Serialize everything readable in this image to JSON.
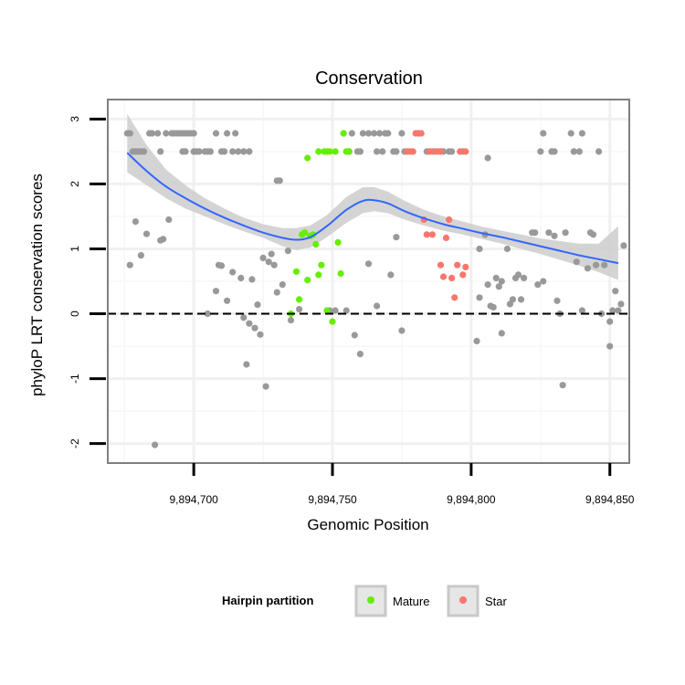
{
  "chart_data": {
    "type": "scatter",
    "title": "Conservation",
    "xlabel": "Genomic Position",
    "ylabel": "phyloP LRT conservation scores",
    "xlim": [
      9894669,
      9894857
    ],
    "ylim": [
      -2.3,
      3.3
    ],
    "x_ticks": [
      {
        "value": 9894700,
        "label": "9,894,700"
      },
      {
        "value": 9894750,
        "label": "9,894,750"
      },
      {
        "value": 9894800,
        "label": "9,894,800"
      },
      {
        "value": 9894850,
        "label": "9,894,850"
      }
    ],
    "y_ticks": [
      {
        "value": -2,
        "label": "-2"
      },
      {
        "value": -1,
        "label": "-1"
      },
      {
        "value": 0,
        "label": "0"
      },
      {
        "value": 1,
        "label": "1"
      },
      {
        "value": 2,
        "label": "2"
      },
      {
        "value": 3,
        "label": "3"
      }
    ],
    "reference_line": {
      "y": 0,
      "style": "dashed"
    },
    "colors": {
      "none": "#999999",
      "Mature": "#66ee00",
      "Star": "#f8766d",
      "smooth": "#3366ff",
      "band": "#cccccc",
      "frame": "#7f7f7f"
    },
    "legend": {
      "title": "Hairpin partition",
      "position": "bottom",
      "entries": [
        {
          "label": "Mature",
          "color": "#66ee00"
        },
        {
          "label": "Star",
          "color": "#f8766d"
        }
      ]
    },
    "series": [
      {
        "name": "none",
        "points": [
          [
            9894676,
            2.78
          ],
          [
            9894677,
            2.78
          ],
          [
            9894678,
            2.5
          ],
          [
            9894679,
            2.5
          ],
          [
            9894680,
            2.5
          ],
          [
            9894681,
            2.5
          ],
          [
            9894682,
            2.5
          ],
          [
            9894684,
            2.78
          ],
          [
            9894685,
            2.78
          ],
          [
            9894687,
            2.78
          ],
          [
            9894688,
            2.5
          ],
          [
            9894690,
            2.78
          ],
          [
            9894692,
            2.78
          ],
          [
            9894693,
            2.78
          ],
          [
            9894694,
            2.78
          ],
          [
            9894695,
            2.78
          ],
          [
            9894696,
            2.78
          ],
          [
            9894697,
            2.78
          ],
          [
            9894698,
            2.78
          ],
          [
            9894699,
            2.78
          ],
          [
            9894700,
            2.78
          ],
          [
            9894696,
            2.5
          ],
          [
            9894697,
            2.5
          ],
          [
            9894700,
            2.5
          ],
          [
            9894701,
            2.5
          ],
          [
            9894702,
            2.5
          ],
          [
            9894704,
            2.5
          ],
          [
            9894705,
            2.5
          ],
          [
            9894706,
            2.5
          ],
          [
            9894708,
            2.78
          ],
          [
            9894710,
            2.5
          ],
          [
            9894711,
            2.5
          ],
          [
            9894712,
            2.78
          ],
          [
            9894715,
            2.78
          ],
          [
            9894714,
            2.5
          ],
          [
            9894716,
            2.5
          ],
          [
            9894718,
            2.5
          ],
          [
            9894720,
            2.5
          ],
          [
            9894677,
            0.75
          ],
          [
            9894679,
            1.42
          ],
          [
            9894681,
            0.9
          ],
          [
            9894683,
            1.23
          ],
          [
            9894688,
            1.13
          ],
          [
            9894689,
            1.15
          ],
          [
            9894691,
            1.45
          ],
          [
            9894686,
            -2.02
          ],
          [
            9894709,
            0.75
          ],
          [
            9894710,
            0.74
          ],
          [
            9894708,
            0.35
          ],
          [
            9894705,
            0.0
          ],
          [
            9894712,
            0.2
          ],
          [
            9894714,
            0.64
          ],
          [
            9894717,
            0.55
          ],
          [
            9894718,
            -0.06
          ],
          [
            9894720,
            -0.15
          ],
          [
            9894721,
            0.53
          ],
          [
            9894722,
            -0.22
          ],
          [
            9894719,
            -0.78
          ],
          [
            9894723,
            0.14
          ],
          [
            9894724,
            -0.32
          ],
          [
            9894726,
            -1.12
          ],
          [
            9894725,
            0.86
          ],
          [
            9894727,
            0.8
          ],
          [
            9894728,
            0.92
          ],
          [
            9894729,
            0.75
          ],
          [
            9894730,
            2.05
          ],
          [
            9894731,
            2.05
          ],
          [
            9894730,
            0.33
          ],
          [
            9894732,
            0.45
          ],
          [
            9894734,
            0.97
          ],
          [
            9894735,
            -0.1
          ],
          [
            9894738,
            0.07
          ],
          [
            9894749,
            0.05
          ],
          [
            9894751,
            0.05
          ],
          [
            9894754,
            2.78
          ],
          [
            9894757,
            2.78
          ],
          [
            9894756,
            2.5
          ],
          [
            9894759,
            2.5
          ],
          [
            9894760,
            2.5
          ],
          [
            9894761,
            2.78
          ],
          [
            9894763,
            2.78
          ],
          [
            9894765,
            2.78
          ],
          [
            9894766,
            2.5
          ],
          [
            9894767,
            2.78
          ],
          [
            9894768,
            2.5
          ],
          [
            9894769,
            2.78
          ],
          [
            9894770,
            2.78
          ],
          [
            9894772,
            2.5
          ],
          [
            9894773,
            2.5
          ],
          [
            9894775,
            2.78
          ],
          [
            9894776,
            2.5
          ],
          [
            9894755,
            0.05
          ],
          [
            9894758,
            -0.33
          ],
          [
            9894760,
            -0.62
          ],
          [
            9894763,
            0.77
          ],
          [
            9894766,
            0.12
          ],
          [
            9894771,
            0.6
          ],
          [
            9894773,
            1.18
          ],
          [
            9894775,
            -0.26
          ],
          [
            9894781,
            2.78
          ],
          [
            9894784,
            2.5
          ],
          [
            9894786,
            2.5
          ],
          [
            9894790,
            2.5
          ],
          [
            9894792,
            2.5
          ],
          [
            9894793,
            2.5
          ],
          [
            9894797,
            2.5
          ],
          [
            9894803,
            1.0
          ],
          [
            9894806,
            2.4
          ],
          [
            9894802,
            -0.42
          ],
          [
            9894803,
            0.25
          ],
          [
            9894805,
            1.22
          ],
          [
            9894806,
            0.45
          ],
          [
            9894807,
            0.12
          ],
          [
            9894808,
            0.1
          ],
          [
            9894809,
            0.55
          ],
          [
            9894810,
            0.42
          ],
          [
            9894811,
            -0.3
          ],
          [
            9894811,
            0.5
          ],
          [
            9894813,
            1.0
          ],
          [
            9894814,
            0.15
          ],
          [
            9894815,
            0.22
          ],
          [
            9894816,
            0.55
          ],
          [
            9894817,
            0.6
          ],
          [
            9894818,
            0.22
          ],
          [
            9894819,
            0.55
          ],
          [
            9894822,
            1.25
          ],
          [
            9894823,
            1.25
          ],
          [
            9894824,
            0.45
          ],
          [
            9894825,
            2.5
          ],
          [
            9894826,
            0.5
          ],
          [
            9894826,
            2.78
          ],
          [
            9894828,
            1.25
          ],
          [
            9894830,
            1.2
          ],
          [
            9894829,
            2.5
          ],
          [
            9894830,
            2.5
          ],
          [
            9894831,
            0.2
          ],
          [
            9894832,
            0.0
          ],
          [
            9894833,
            -1.1
          ],
          [
            9894834,
            1.25
          ],
          [
            9894836,
            2.78
          ],
          [
            9894837,
            2.5
          ],
          [
            9894838,
            0.8
          ],
          [
            9894839,
            2.5
          ],
          [
            9894840,
            2.78
          ],
          [
            9894840,
            0.05
          ],
          [
            9894842,
            0.7
          ],
          [
            9894843,
            1.25
          ],
          [
            9894844,
            1.22
          ],
          [
            9894845,
            0.75
          ],
          [
            9894846,
            2.5
          ],
          [
            9894847,
            0.0
          ],
          [
            9894848,
            0.75
          ],
          [
            9894850,
            -0.12
          ],
          [
            9894850,
            -0.5
          ],
          [
            9894851,
            0.05
          ],
          [
            9894852,
            0.35
          ],
          [
            9894853,
            0.05
          ],
          [
            9894854,
            0.15
          ],
          [
            9894855,
            1.05
          ]
        ]
      },
      {
        "name": "Mature",
        "points": [
          [
            9894735,
            0.0
          ],
          [
            9894737,
            0.65
          ],
          [
            9894738,
            0.22
          ],
          [
            9894739,
            1.22
          ],
          [
            9894740,
            1.25
          ],
          [
            9894741,
            0.52
          ],
          [
            9894741,
            2.4
          ],
          [
            9894742,
            1.2
          ],
          [
            9894743,
            1.22
          ],
          [
            9894744,
            1.07
          ],
          [
            9894745,
            0.6
          ],
          [
            9894745,
            2.5
          ],
          [
            9894746,
            0.75
          ],
          [
            9894747,
            2.5
          ],
          [
            9894748,
            0.05
          ],
          [
            9894748,
            2.5
          ],
          [
            9894749,
            2.5
          ],
          [
            9894750,
            -0.12
          ],
          [
            9894751,
            2.5
          ],
          [
            9894752,
            1.1
          ],
          [
            9894753,
            0.62
          ],
          [
            9894754,
            2.78
          ],
          [
            9894755,
            2.5
          ],
          [
            9894756,
            2.5
          ]
        ]
      },
      {
        "name": "Star",
        "points": [
          [
            9894777,
            2.5
          ],
          [
            9894778,
            2.5
          ],
          [
            9894779,
            2.5
          ],
          [
            9894780,
            2.78
          ],
          [
            9894781,
            2.78
          ],
          [
            9894782,
            2.78
          ],
          [
            9894783,
            1.45
          ],
          [
            9894784,
            1.22
          ],
          [
            9894785,
            2.5
          ],
          [
            9894786,
            1.22
          ],
          [
            9894787,
            2.5
          ],
          [
            9894788,
            2.5
          ],
          [
            9894789,
            2.5
          ],
          [
            9894789,
            0.75
          ],
          [
            9894790,
            0.57
          ],
          [
            9894791,
            1.17
          ],
          [
            9894792,
            1.45
          ],
          [
            9894793,
            0.55
          ],
          [
            9894794,
            0.25
          ],
          [
            9894795,
            0.75
          ],
          [
            9894796,
            2.5
          ],
          [
            9894797,
            0.6
          ],
          [
            9894798,
            2.5
          ],
          [
            9894798,
            0.72
          ]
        ]
      }
    ],
    "smooth": {
      "x": [
        9894676,
        9894683,
        9894690,
        9894697,
        9894704,
        9894711,
        9894718,
        9894725,
        9894732,
        9894737,
        9894742,
        9894748,
        9894755,
        9894761,
        9894765,
        9894770,
        9894776,
        9894783,
        9894790,
        9894797,
        9894804,
        9894811,
        9894818,
        9894825,
        9894832,
        9894839,
        9894846,
        9894853
      ],
      "y": [
        2.48,
        2.2,
        1.96,
        1.78,
        1.62,
        1.48,
        1.36,
        1.25,
        1.17,
        1.14,
        1.18,
        1.35,
        1.6,
        1.74,
        1.75,
        1.7,
        1.58,
        1.47,
        1.38,
        1.31,
        1.24,
        1.18,
        1.11,
        1.04,
        0.97,
        0.9,
        0.84,
        0.78
      ],
      "lower": [
        2.18,
        1.98,
        1.78,
        1.62,
        1.5,
        1.38,
        1.27,
        1.17,
        1.04,
        0.98,
        1.02,
        1.18,
        1.4,
        1.55,
        1.58,
        1.55,
        1.45,
        1.36,
        1.28,
        1.22,
        1.15,
        1.08,
        1.0,
        0.92,
        0.83,
        0.74,
        0.64,
        0.52
      ],
      "upper": [
        3.08,
        2.6,
        2.22,
        1.98,
        1.78,
        1.62,
        1.48,
        1.38,
        1.32,
        1.32,
        1.36,
        1.52,
        1.8,
        1.95,
        1.95,
        1.88,
        1.74,
        1.6,
        1.5,
        1.42,
        1.34,
        1.28,
        1.22,
        1.16,
        1.12,
        1.08,
        1.08,
        1.35
      ]
    }
  }
}
